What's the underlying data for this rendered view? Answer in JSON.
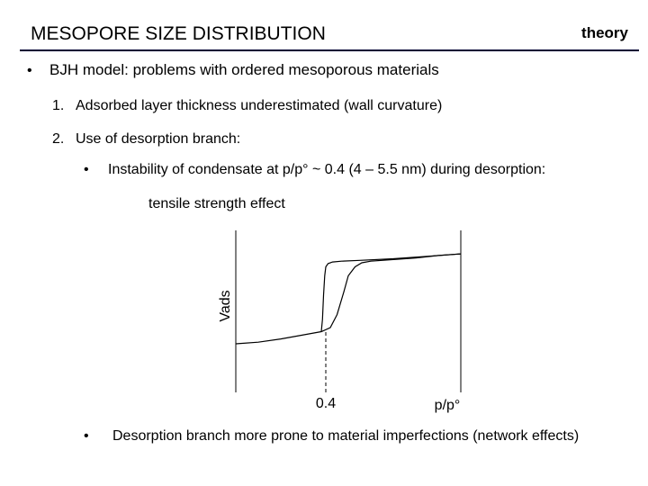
{
  "slide": {
    "title": "MESOPORE SIZE DISTRIBUTION",
    "tag": "theory",
    "bullet_symbol": "•",
    "main_bullet": "BJH model: problems with ordered mesoporous materials",
    "numbered_items": [
      {
        "number": "1.",
        "text": "Adsorbed layer thickness underestimated (wall curvature)"
      },
      {
        "number": "2.",
        "text": "Use of desorption branch:"
      }
    ],
    "sub_bullets": [
      "Instability of condensate at p/p° ~ 0.4 (4 – 5.5 nm) during desorption:",
      "Desorption branch more prone to material imperfections (network effects)"
    ],
    "sub_note": "tensile strength effect"
  },
  "chart_data": {
    "type": "line",
    "xlabel": "p/p°",
    "ylabel": "Vads",
    "xlim": [
      0,
      1
    ],
    "ylim": [
      0,
      1
    ],
    "x_ticks": [
      {
        "value": 0.4,
        "label": "0.4"
      }
    ],
    "reference_line": {
      "x": 0.4,
      "style": "dashed"
    },
    "series": [
      {
        "branch": "adsorption",
        "color": "#000000",
        "x": [
          0.0,
          0.1,
          0.2,
          0.3,
          0.38,
          0.42,
          0.45,
          0.48,
          0.5,
          0.53,
          0.56,
          0.6,
          0.7,
          0.8,
          0.9,
          1.0
        ],
        "y": [
          0.3,
          0.31,
          0.33,
          0.355,
          0.375,
          0.4,
          0.48,
          0.62,
          0.72,
          0.775,
          0.8,
          0.81,
          0.82,
          0.83,
          0.845,
          0.855
        ]
      },
      {
        "branch": "desorption",
        "color": "#000000",
        "x": [
          0.38,
          0.385,
          0.39,
          0.395,
          0.4,
          0.41,
          0.43,
          0.47,
          0.55,
          0.7,
          0.85,
          1.0
        ],
        "y": [
          0.375,
          0.45,
          0.6,
          0.72,
          0.775,
          0.795,
          0.805,
          0.81,
          0.815,
          0.825,
          0.84,
          0.855
        ]
      }
    ]
  }
}
